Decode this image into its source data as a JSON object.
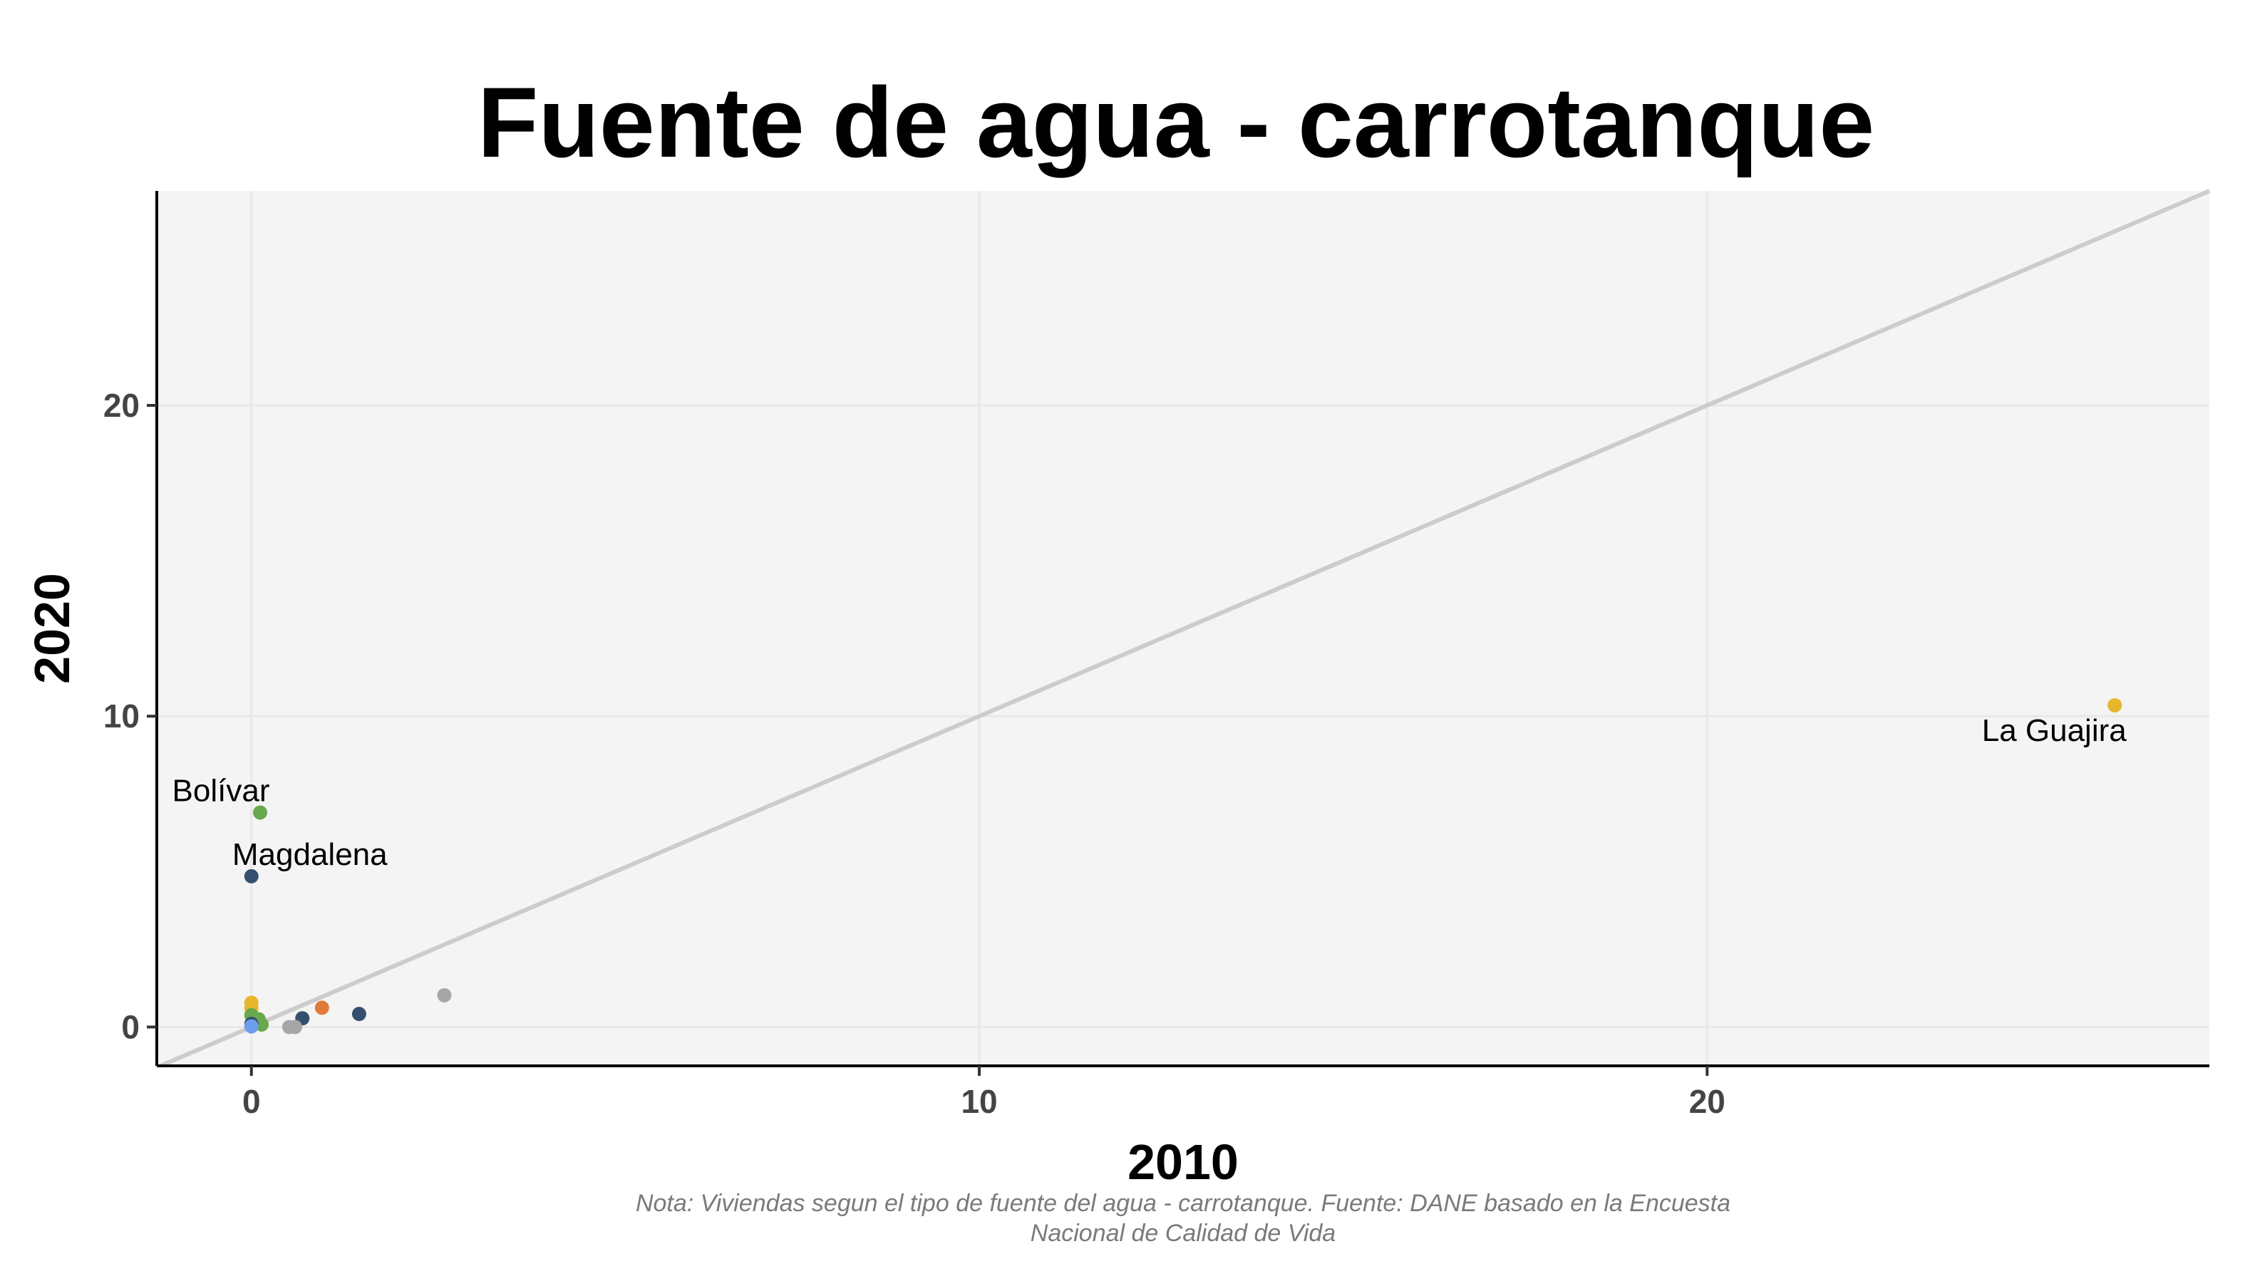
{
  "chart_data": {
    "type": "scatter",
    "title": "Fuente de agua - carrotanque",
    "xlabel": "2010",
    "ylabel": "2020",
    "xlim": [
      -1.3,
      26.9
    ],
    "ylim": [
      -1.25,
      26.9
    ],
    "x_ticks": [
      0,
      10,
      20
    ],
    "y_ticks": [
      0,
      10,
      20
    ],
    "x_tick_labels": [
      "0",
      "10",
      "20"
    ],
    "y_tick_labels": [
      "0",
      "10",
      "20"
    ],
    "grid": true,
    "reference_line": "y = x",
    "points": [
      {
        "x": 25.6,
        "y": 10.35,
        "color": "#e8b62c",
        "label": "La Guajira"
      },
      {
        "x": 0.12,
        "y": 6.9,
        "color": "#6aa84f",
        "label": "Bolívar"
      },
      {
        "x": 0.0,
        "y": 4.85,
        "color": "#34506e",
        "label": "Magdalena"
      },
      {
        "x": 2.65,
        "y": 1.02,
        "color": "#a6a6a6"
      },
      {
        "x": 0.97,
        "y": 0.62,
        "color": "#e07b39"
      },
      {
        "x": 1.48,
        "y": 0.42,
        "color": "#34506e"
      },
      {
        "x": 0.7,
        "y": 0.28,
        "color": "#34506e"
      },
      {
        "x": 0.6,
        "y": 0.0,
        "color": "#a6a6a6"
      },
      {
        "x": 0.52,
        "y": 0.0,
        "color": "#a6a6a6"
      },
      {
        "x": 0.0,
        "y": 0.78,
        "color": "#e8b62c"
      },
      {
        "x": 0.0,
        "y": 0.6,
        "color": "#e8b62c"
      },
      {
        "x": 0.0,
        "y": 0.38,
        "color": "#6aa84f"
      },
      {
        "x": 0.1,
        "y": 0.25,
        "color": "#6aa84f"
      },
      {
        "x": 0.05,
        "y": 0.15,
        "color": "#6aa84f"
      },
      {
        "x": 0.14,
        "y": 0.08,
        "color": "#6aa84f"
      },
      {
        "x": 0.0,
        "y": 0.1,
        "color": "#34506e"
      },
      {
        "x": 0.0,
        "y": 0.02,
        "color": "#6d9eeb"
      }
    ],
    "caption_lines": [
      "Nota: Viviendas segun el tipo de fuente del agua - carrotanque. Fuente: DANE basado en la Encuesta",
      "Nacional de Calidad de Vida"
    ],
    "colors": {
      "panel": "#f4f4f4",
      "grid": "#e8e8e8",
      "reference_line": "#cccccc",
      "axis": "#000000"
    }
  }
}
